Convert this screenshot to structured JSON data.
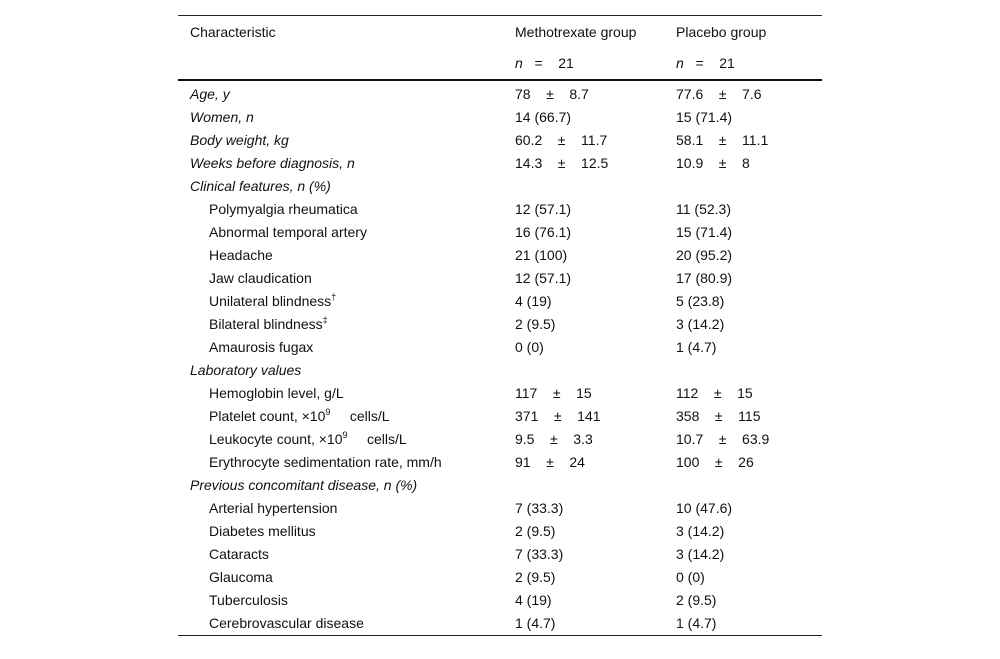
{
  "header": {
    "col1": "Characteristic",
    "col2": "Methotrexate group",
    "col3": "Placebo group",
    "n_label": "n",
    "n_eq": "   =    21"
  },
  "rows": [
    {
      "label": "Age, y",
      "italic": true,
      "v1": "78    ±    8.7",
      "v2": "77.6    ±    7.6"
    },
    {
      "label": "Women, n",
      "italic": true,
      "v1": "14 (66.7)",
      "v2": "15 (71.4)"
    },
    {
      "label": "Body weight, kg",
      "italic": true,
      "v1": "60.2    ±    11.7",
      "v2": "58.1    ±    11.1"
    },
    {
      "label": "Weeks before diagnosis, n",
      "italic": true,
      "v1": "14.3    ±    12.5",
      "v2": "10.9    ±    8"
    },
    {
      "label": "Clinical features, n (%)",
      "italic": true,
      "v1": "",
      "v2": ""
    },
    {
      "label": "Polymyalgia rheumatica",
      "indent": true,
      "v1": "12 (57.1)",
      "v2": "11 (52.3)"
    },
    {
      "label": "Abnormal temporal artery",
      "indent": true,
      "v1": "16 (76.1)",
      "v2": "15 (71.4)"
    },
    {
      "label": "Headache",
      "indent": true,
      "v1": "21 (100)",
      "v2": "20 (95.2)"
    },
    {
      "label": "Jaw claudication",
      "indent": true,
      "v1": "12 (57.1)",
      "v2": "17 (80.9)"
    },
    {
      "label": "Unilateral blindness",
      "sup": "†",
      "indent": true,
      "v1": "4 (19)",
      "v2": "5 (23.8)"
    },
    {
      "label": "Bilateral blindness",
      "sup": "‡",
      "indent": true,
      "v1": "2 (9.5)",
      "v2": "3 (14.2)"
    },
    {
      "label": "Amaurosis fugax",
      "indent": true,
      "v1": "0 (0)",
      "v2": "1 (4.7)"
    },
    {
      "label": "Laboratory values",
      "italic": true,
      "v1": "",
      "v2": ""
    },
    {
      "label": "Hemoglobin level, g/L",
      "indent": true,
      "v1": "117    ±    15",
      "v2": "112    ±    15"
    },
    {
      "label": "Platelet count, ×10",
      "sup": "9",
      "after": "     cells/L",
      "indent": true,
      "v1": "371    ±    141",
      "v2": "358    ±    115"
    },
    {
      "label": "Leukocyte count, ×10",
      "sup": "9",
      "after": "     cells/L",
      "indent": true,
      "v1": "9.5    ±    3.3",
      "v2": "10.7    ±    63.9"
    },
    {
      "label": "Erythrocyte sedimentation rate, mm/h",
      "indent": true,
      "v1": "91    ±    24",
      "v2": "100    ±    26"
    },
    {
      "label": "Previous concomitant disease, n (%)",
      "italic": true,
      "v1": "",
      "v2": ""
    },
    {
      "label": "Arterial hypertension",
      "indent": true,
      "v1": "7 (33.3)",
      "v2": "10 (47.6)"
    },
    {
      "label": "Diabetes mellitus",
      "indent": true,
      "v1": "2 (9.5)",
      "v2": "3 (14.2)"
    },
    {
      "label": "Cataracts",
      "indent": true,
      "v1": "7 (33.3)",
      "v2": "3 (14.2)"
    },
    {
      "label": "Glaucoma",
      "indent": true,
      "v1": "2 (9.5)",
      "v2": "0 (0)"
    },
    {
      "label": "Tuberculosis",
      "indent": true,
      "v1": "4 (19)",
      "v2": "2 (9.5)"
    },
    {
      "label": "Cerebrovascular disease",
      "indent": true,
      "v1": "1 (4.7)",
      "v2": "1 (4.7)"
    }
  ]
}
